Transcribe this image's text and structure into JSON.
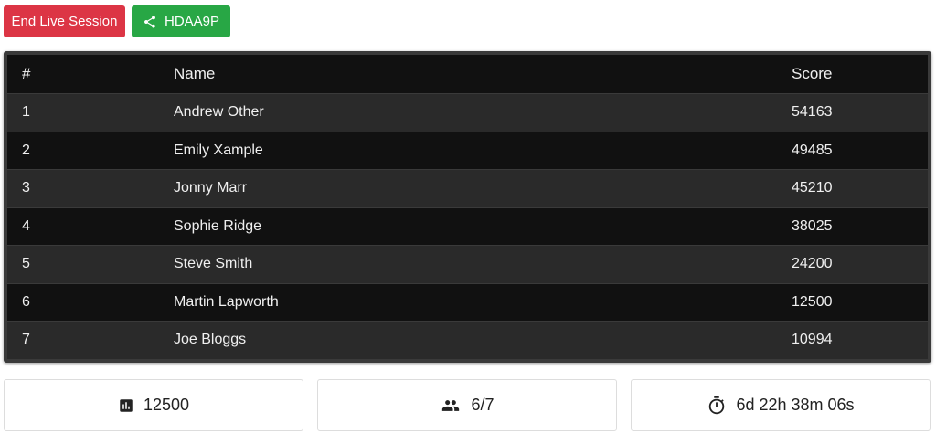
{
  "toolbar": {
    "end_label": "End Live Session",
    "session_code": "HDAA9P",
    "end_color": "#dc3545",
    "code_color": "#28a745"
  },
  "table": {
    "headers": [
      "#",
      "Name",
      "Score"
    ],
    "rows": [
      [
        "1",
        "Andrew Other",
        "54163"
      ],
      [
        "2",
        "Emily Xample",
        "49485"
      ],
      [
        "3",
        "Jonny Marr",
        "45210"
      ],
      [
        "4",
        "Sophie Ridge",
        "38025"
      ],
      [
        "5",
        "Steve Smith",
        "24200"
      ],
      [
        "6",
        "Martin Lapworth",
        "12500"
      ],
      [
        "7",
        "Joe Bloggs",
        "10994"
      ]
    ]
  },
  "stats": {
    "score": "12500",
    "players": "6/7",
    "time": "6d 22h 38m 06s"
  }
}
